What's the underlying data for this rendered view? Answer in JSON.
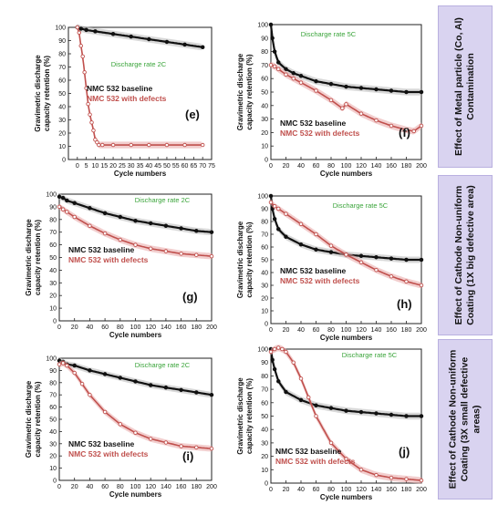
{
  "figure": {
    "side_labels": [
      "Effect of Metal particle (Co, Al) Contamination",
      "Effect of Cathode Non-uniform Coating (1X big defective area)",
      "Effect of Cathode Non-uniform Coating (3X small defective areas)"
    ]
  },
  "colors": {
    "baseline": "#111111",
    "defect": "#c0504d",
    "band_base": "#b8b8b8",
    "band_def": "#e8a5a5",
    "rate_text": "#3aa43a"
  },
  "chart_data": [
    {
      "id": "e",
      "type": "scatter",
      "panel_label": "(e)",
      "ylabel": "Gravimetric discharge capacity retention (%)",
      "xlabel": "Cycle numbers",
      "rate_label": "Discharge rate 2C",
      "xlim": [
        -5,
        75
      ],
      "ylim": [
        0,
        100
      ],
      "xticks": [
        0,
        5,
        10,
        15,
        20,
        25,
        30,
        35,
        40,
        45,
        50,
        55,
        60,
        65,
        70,
        75
      ],
      "yticks": [
        0,
        10,
        20,
        30,
        40,
        50,
        60,
        70,
        80,
        90,
        100
      ],
      "series": [
        {
          "name": "NMC 532 baseline",
          "x": [
            0,
            2,
            5,
            10,
            20,
            30,
            40,
            50,
            60,
            70
          ],
          "y": [
            100,
            99,
            98,
            97,
            95,
            93,
            91,
            89,
            87,
            85
          ]
        },
        {
          "name": "NMC 532 with defects",
          "x": [
            0,
            1,
            2,
            3,
            4,
            5,
            6,
            7,
            8,
            9,
            10,
            11,
            12,
            14,
            20,
            30,
            40,
            50,
            60,
            70
          ],
          "y": [
            100,
            96,
            86,
            78,
            66,
            54,
            42,
            34,
            28,
            22,
            15,
            13,
            11,
            11,
            11,
            11,
            11,
            11,
            11,
            11
          ]
        }
      ]
    },
    {
      "id": "f",
      "type": "scatter",
      "panel_label": "(f)",
      "ylabel": "Gravimetric discharge capacity retention (%)",
      "xlabel": "Cycle numbers",
      "rate_label": "Discharge rate 5C",
      "xlim": [
        0,
        200
      ],
      "ylim": [
        0,
        100
      ],
      "xticks": [
        0,
        20,
        40,
        60,
        80,
        100,
        120,
        140,
        160,
        180,
        200
      ],
      "yticks": [
        0,
        10,
        20,
        30,
        40,
        50,
        60,
        70,
        80,
        90,
        100
      ],
      "series": [
        {
          "name": "NMC 532 baseline",
          "x": [
            0,
            2,
            5,
            10,
            20,
            30,
            40,
            60,
            80,
            100,
            120,
            140,
            160,
            180,
            200
          ],
          "y": [
            100,
            90,
            80,
            72,
            67,
            64,
            62,
            58,
            56,
            54,
            53,
            52,
            51,
            50,
            50
          ]
        },
        {
          "name": "NMC 532 with defects",
          "x": [
            0,
            5,
            10,
            20,
            30,
            40,
            60,
            80,
            95,
            100,
            120,
            140,
            160,
            180,
            190,
            200
          ],
          "y": [
            70,
            69,
            67,
            63,
            60,
            57,
            51,
            44,
            38,
            41,
            34,
            29,
            25,
            22,
            21,
            25
          ]
        }
      ]
    },
    {
      "id": "g",
      "type": "scatter",
      "panel_label": "(g)",
      "ylabel": "Gravimetric discharge capacity retention (%)",
      "xlabel": "Cycle numbers",
      "rate_label": "Discharge rate 2C",
      "xlim": [
        0,
        200
      ],
      "ylim": [
        0,
        100
      ],
      "xticks": [
        0,
        20,
        40,
        60,
        80,
        100,
        120,
        140,
        160,
        180,
        200
      ],
      "yticks": [
        0,
        10,
        20,
        30,
        40,
        50,
        60,
        70,
        80,
        90,
        100
      ],
      "series": [
        {
          "name": "NMC 532 baseline",
          "x": [
            0,
            5,
            10,
            20,
            40,
            60,
            80,
            100,
            120,
            140,
            160,
            180,
            200
          ],
          "y": [
            98,
            97,
            95,
            93,
            89,
            85,
            82,
            79,
            77,
            75,
            73,
            71,
            70
          ]
        },
        {
          "name": "NMC 532 with defects",
          "x": [
            0,
            5,
            10,
            20,
            40,
            60,
            80,
            100,
            120,
            140,
            160,
            180,
            200
          ],
          "y": [
            90,
            88,
            86,
            82,
            75,
            69,
            64,
            60,
            57,
            55,
            53,
            52,
            51
          ]
        }
      ]
    },
    {
      "id": "h",
      "type": "scatter",
      "panel_label": "(h)",
      "ylabel": "Gravimetric discharge capacity retention (%)",
      "xlabel": "Cycle numbers",
      "rate_label": "Discharge rate 5C",
      "xlim": [
        0,
        200
      ],
      "ylim": [
        0,
        100
      ],
      "xticks": [
        0,
        20,
        40,
        60,
        80,
        100,
        120,
        140,
        160,
        180,
        200
      ],
      "yticks": [
        0,
        10,
        20,
        30,
        40,
        50,
        60,
        70,
        80,
        90,
        100
      ],
      "series": [
        {
          "name": "NMC 532 baseline",
          "x": [
            0,
            2,
            5,
            10,
            20,
            40,
            60,
            80,
            100,
            120,
            140,
            160,
            180,
            200
          ],
          "y": [
            100,
            90,
            82,
            74,
            68,
            62,
            58,
            56,
            54,
            53,
            52,
            51,
            50,
            50
          ]
        },
        {
          "name": "NMC 532 with defects",
          "x": [
            0,
            5,
            10,
            20,
            40,
            60,
            80,
            100,
            120,
            140,
            160,
            180,
            200
          ],
          "y": [
            95,
            92,
            90,
            86,
            78,
            70,
            61,
            54,
            48,
            42,
            37,
            33,
            30
          ]
        }
      ]
    },
    {
      "id": "i",
      "type": "scatter",
      "panel_label": "(i)",
      "ylabel": "Gravimetric discharge capacity retention (%)",
      "xlabel": "Cycle numbers",
      "rate_label": "Discharge rate 2C",
      "xlim": [
        0,
        200
      ],
      "ylim": [
        0,
        100
      ],
      "xticks": [
        0,
        20,
        40,
        60,
        80,
        100,
        120,
        140,
        160,
        180,
        200
      ],
      "yticks": [
        0,
        10,
        20,
        30,
        40,
        50,
        60,
        70,
        80,
        90,
        100
      ],
      "series": [
        {
          "name": "NMC 532 baseline",
          "x": [
            0,
            5,
            10,
            20,
            40,
            60,
            80,
            100,
            120,
            140,
            160,
            180,
            200
          ],
          "y": [
            98,
            97,
            95,
            94,
            90,
            87,
            84,
            81,
            78,
            76,
            74,
            72,
            70
          ]
        },
        {
          "name": "NMC 532 with defects",
          "x": [
            0,
            5,
            10,
            20,
            30,
            40,
            60,
            80,
            100,
            120,
            140,
            160,
            180,
            200
          ],
          "y": [
            95,
            96,
            94,
            88,
            79,
            70,
            56,
            46,
            39,
            34,
            31,
            28,
            27,
            26
          ]
        }
      ]
    },
    {
      "id": "j",
      "type": "scatter",
      "panel_label": "(j)",
      "ylabel": "Gravimetric discharge capacity retention (%)",
      "xlabel": "Cycle numbers",
      "rate_label": "Discharge rate 5C",
      "xlim": [
        0,
        200
      ],
      "ylim": [
        0,
        100
      ],
      "xticks": [
        0,
        20,
        40,
        60,
        80,
        100,
        120,
        140,
        160,
        180,
        200
      ],
      "yticks": [
        0,
        10,
        20,
        30,
        40,
        50,
        60,
        70,
        80,
        90,
        100
      ],
      "series": [
        {
          "name": "NMC 532 baseline",
          "x": [
            0,
            2,
            5,
            10,
            20,
            40,
            60,
            80,
            100,
            120,
            140,
            160,
            180,
            200
          ],
          "y": [
            100,
            92,
            85,
            76,
            68,
            62,
            58,
            56,
            54,
            53,
            52,
            51,
            50,
            50
          ]
        },
        {
          "name": "NMC 532 with defects",
          "x": [
            0,
            5,
            10,
            15,
            20,
            30,
            40,
            50,
            60,
            80,
            100,
            120,
            140,
            160,
            180,
            200
          ],
          "y": [
            98,
            100,
            101,
            100,
            98,
            90,
            78,
            64,
            50,
            30,
            18,
            10,
            6,
            4,
            3,
            2
          ]
        }
      ]
    }
  ]
}
